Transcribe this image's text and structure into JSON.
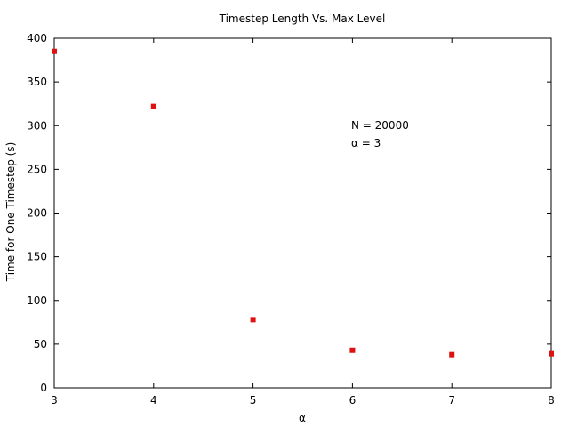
{
  "chart_data": {
    "type": "scatter",
    "title": "Timestep Length Vs. Max Level",
    "xlabel": "α",
    "ylabel": "Time for One Timestep (s)",
    "xlim": [
      3,
      8
    ],
    "ylim": [
      0,
      400
    ],
    "xticks": [
      3,
      4,
      5,
      6,
      7,
      8
    ],
    "yticks": [
      0,
      50,
      100,
      150,
      200,
      250,
      300,
      350,
      400
    ],
    "series": [
      {
        "color": "#dd1111",
        "marker": "square",
        "points": [
          {
            "x": 3,
            "y": 385
          },
          {
            "x": 4,
            "y": 322
          },
          {
            "x": 5,
            "y": 78
          },
          {
            "x": 6,
            "y": 43
          },
          {
            "x": 7,
            "y": 38
          },
          {
            "x": 8,
            "y": 39
          }
        ]
      }
    ],
    "annotations": [
      "N = 20000",
      "α = 3"
    ],
    "grid": false,
    "frame_color": "#000000"
  }
}
